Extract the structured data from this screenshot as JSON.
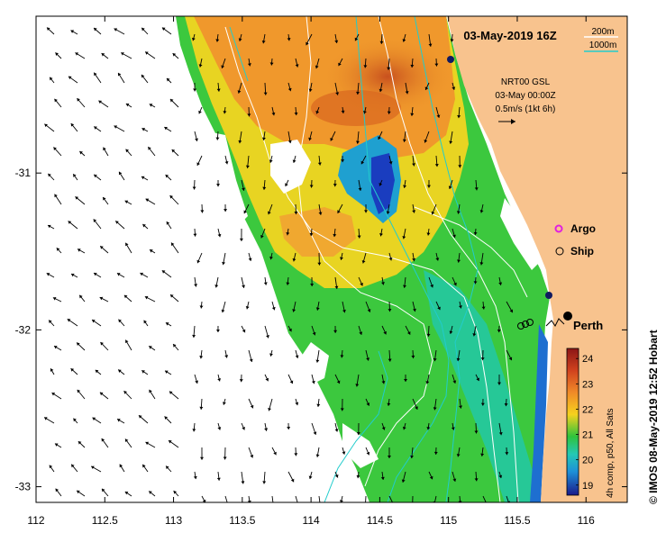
{
  "title": "03-May-2019 16Z",
  "depth_legend": {
    "items": [
      {
        "label": "200m",
        "color": "#ffffff"
      },
      {
        "label": "1000m",
        "color": "#20d0d0"
      }
    ]
  },
  "current_info": {
    "line1": "NRT00 GSL",
    "line2": "03-May 00:00Z",
    "line3": "0.5m/s (1kt 6h)"
  },
  "markers": {
    "argo_label": "Argo",
    "ship_label": "Ship",
    "city_label": "Perth"
  },
  "colorbar": {
    "title": "4h comp, p50, All Sats",
    "ticks": [
      "24",
      "23",
      "22",
      "21",
      "20",
      "19"
    ],
    "min": 18.6,
    "max": 24.4
  },
  "copyright": "© IMOS 08-May-2019 12:52 Hobart",
  "axes": {
    "x_ticks": [
      "112",
      "112.5",
      "113",
      "113.5",
      "114",
      "114.5",
      "115",
      "115.5",
      "116"
    ],
    "y_ticks": [
      "-31",
      "-32",
      "-33"
    ],
    "x_range": [
      112,
      116.3
    ],
    "y_range": [
      -33.1,
      -30.0
    ]
  },
  "colors": {
    "land": "#f8c38e",
    "sea_no_data": "#ffffff",
    "sst_warm": "#e8642a",
    "sst_mid": "#33c845",
    "sst_cool": "#1e3fbf",
    "contour_200m": "#ffffff",
    "contour_1000m": "#22cccc"
  }
}
